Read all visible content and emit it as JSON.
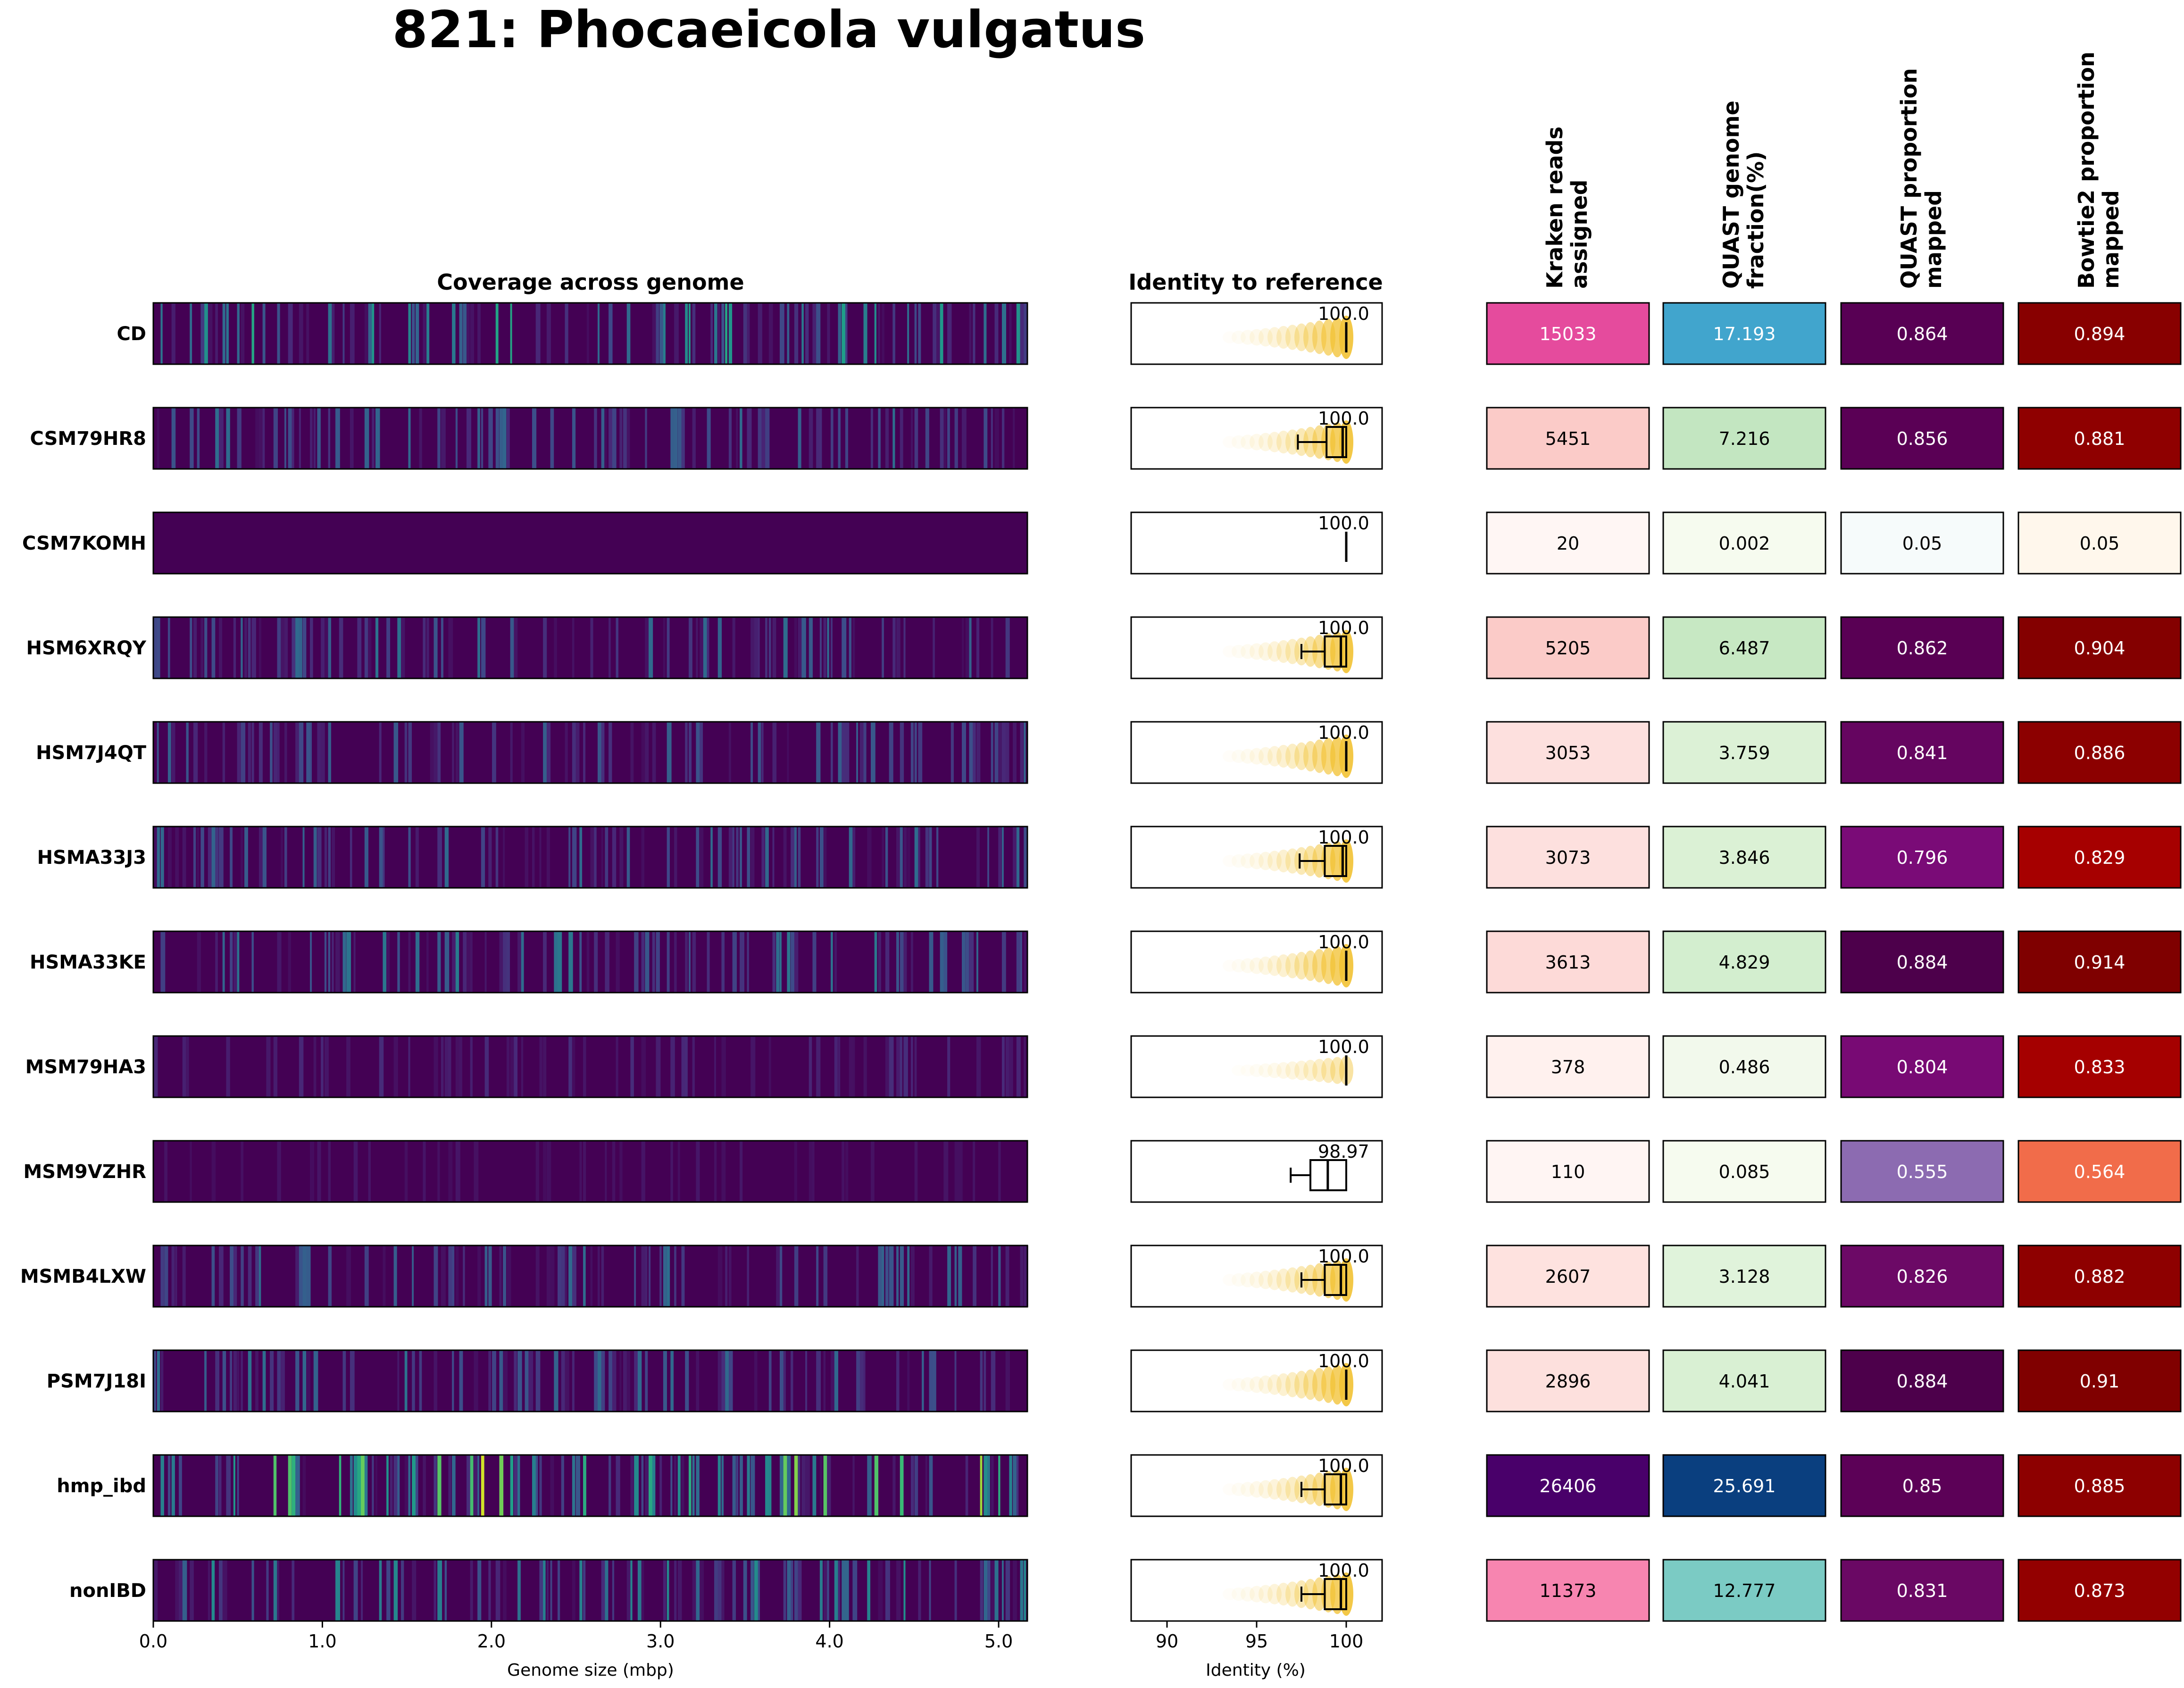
{
  "title": "821: Phocaeicola vulgatus",
  "panels": {
    "coverage_title": "Coverage across genome",
    "identity_title": "Identity to reference",
    "coverage_xlabel": "Genome size (mbp)",
    "identity_xlabel": "Identity (%)"
  },
  "column_headers": [
    [
      "Kraken reads",
      "assigned"
    ],
    [
      "QUAST genome",
      "fraction(%)"
    ],
    [
      "QUAST proportion",
      "mapped"
    ],
    [
      "Bowtie2 proportion",
      "mapped"
    ]
  ],
  "chart_data": {
    "type": "heatmap",
    "samples": [
      "CD",
      "CSM79HR8",
      "CSM7KOMH",
      "HSM6XRQY",
      "HSM7J4QT",
      "HSMA33J3",
      "HSMA33KE",
      "MSM79HA3",
      "MSM9VZHR",
      "MSMB4LXW",
      "PSM7J18I",
      "hmp_ibd",
      "nonIBD"
    ],
    "coverage": {
      "xlim": [
        0,
        5.17
      ],
      "xticks": [
        "0.0",
        "1.0",
        "2.0",
        "3.0",
        "4.0",
        "5.0"
      ],
      "colormap": "viridis",
      "relative_intensity": [
        0.55,
        0.35,
        0.0,
        0.35,
        0.3,
        0.32,
        0.38,
        0.12,
        0.06,
        0.33,
        0.35,
        0.85,
        0.45
      ]
    },
    "identity": {
      "xlim": [
        88,
        102
      ],
      "xticks": [
        "90",
        "95",
        "100"
      ],
      "max_labels": [
        "100.0",
        "100.0",
        "100.0",
        "100.0",
        "100.0",
        "100.0",
        "100.0",
        "100.0",
        "98.97",
        "100.0",
        "100.0",
        "100.0",
        "100.0"
      ],
      "boxplots": [
        {
          "q1": 99.9,
          "median": 100.0,
          "q3": 100.0,
          "whisker_low": 99.8,
          "whisker_high": 100.0
        },
        {
          "q1": 98.9,
          "median": 99.8,
          "q3": 100.0,
          "whisker_low": 97.3,
          "whisker_high": 100.0
        },
        {
          "q1": 100.0,
          "median": 100.0,
          "q3": 100.0,
          "whisker_low": 100.0,
          "whisker_high": 100.0
        },
        {
          "q1": 98.8,
          "median": 99.7,
          "q3": 100.0,
          "whisker_low": 97.5,
          "whisker_high": 100.0
        },
        {
          "q1": 99.9,
          "median": 100.0,
          "q3": 100.0,
          "whisker_low": 99.8,
          "whisker_high": 100.0
        },
        {
          "q1": 98.8,
          "median": 99.8,
          "q3": 100.0,
          "whisker_low": 97.4,
          "whisker_high": 100.0
        },
        {
          "q1": 99.9,
          "median": 100.0,
          "q3": 100.0,
          "whisker_low": 99.8,
          "whisker_high": 100.0
        },
        {
          "q1": 99.9,
          "median": 100.0,
          "q3": 100.0,
          "whisker_low": 99.8,
          "whisker_high": 100.0
        },
        {
          "q1": 98.0,
          "median": 98.97,
          "q3": 100.0,
          "whisker_low": 96.9,
          "whisker_high": 100.0
        },
        {
          "q1": 98.8,
          "median": 99.7,
          "q3": 100.0,
          "whisker_low": 97.5,
          "whisker_high": 100.0
        },
        {
          "q1": 99.9,
          "median": 100.0,
          "q3": 100.0,
          "whisker_low": 99.8,
          "whisker_high": 100.0
        },
        {
          "q1": 98.8,
          "median": 99.7,
          "q3": 100.0,
          "whisker_low": 97.5,
          "whisker_high": 100.0
        },
        {
          "q1": 98.8,
          "median": 99.7,
          "q3": 100.0,
          "whisker_low": 97.5,
          "whisker_high": 100.0
        }
      ]
    },
    "metrics": {
      "kraken_reads_assigned": {
        "values": [
          "15033",
          "5451",
          "20",
          "5205",
          "3053",
          "3073",
          "3613",
          "378",
          "110",
          "2607",
          "2896",
          "26406",
          "11373"
        ],
        "colors": [
          "#e54b9d",
          "#fbcbc8",
          "#fff6f4",
          "#fbcbc8",
          "#fde0de",
          "#fde0de",
          "#fddad8",
          "#fff1ee",
          "#fff5f3",
          "#fee2df",
          "#fde0dd",
          "#49006a",
          "#f785b0"
        ],
        "text_colors": [
          "#ffffff",
          "#000000",
          "#000000",
          "#000000",
          "#000000",
          "#000000",
          "#000000",
          "#000000",
          "#000000",
          "#000000",
          "#000000",
          "#ffffff",
          "#000000"
        ]
      },
      "quast_genome_fraction": {
        "values": [
          "17.193",
          "7.216",
          "0.002",
          "6.487",
          "3.759",
          "3.846",
          "4.829",
          "0.486",
          "0.085",
          "3.128",
          "4.041",
          "25.691",
          "12.777"
        ],
        "colors": [
          "#41a5cd",
          "#c3e6c1",
          "#f6fbef",
          "#c7e8c3",
          "#dcf1d6",
          "#dbf1d5",
          "#d3eecf",
          "#f2f9ec",
          "#f6fbef",
          "#e0f3db",
          "#d9f0d3",
          "#0a3f7f",
          "#7bcbc4"
        ],
        "text_colors": [
          "#ffffff",
          "#000000",
          "#000000",
          "#000000",
          "#000000",
          "#000000",
          "#000000",
          "#000000",
          "#000000",
          "#000000",
          "#000000",
          "#ffffff",
          "#000000"
        ]
      },
      "quast_proportion_mapped": {
        "values": [
          "0.864",
          "0.856",
          "0.05",
          "0.862",
          "0.841",
          "0.796",
          "0.884",
          "0.804",
          "0.555",
          "0.826",
          "0.884",
          "0.85",
          "0.831"
        ],
        "colors": [
          "#580054",
          "#5a0055",
          "#f6fbfb",
          "#590054",
          "#650560",
          "#7a0b77",
          "#4d004b",
          "#780a74",
          "#8c6bb1",
          "#6c0966",
          "#4d004b",
          "#5c0157",
          "#6a0864"
        ],
        "text_colors": [
          "#ffffff",
          "#ffffff",
          "#000000",
          "#ffffff",
          "#ffffff",
          "#ffffff",
          "#ffffff",
          "#ffffff",
          "#ffffff",
          "#ffffff",
          "#ffffff",
          "#ffffff",
          "#ffffff"
        ]
      },
      "bowtie2_proportion_mapped": {
        "values": [
          "0.894",
          "0.881",
          "0.05",
          "0.904",
          "0.886",
          "0.829",
          "0.914",
          "0.833",
          "0.564",
          "0.882",
          "0.91",
          "0.885",
          "0.873"
        ],
        "colors": [
          "#880000",
          "#8f0000",
          "#fff7ec",
          "#840000",
          "#8c0000",
          "#a60000",
          "#7f0000",
          "#a50000",
          "#f16c4a",
          "#8e0000",
          "#800000",
          "#8d0000",
          "#930000"
        ],
        "text_colors": [
          "#ffffff",
          "#ffffff",
          "#000000",
          "#ffffff",
          "#ffffff",
          "#ffffff",
          "#ffffff",
          "#ffffff",
          "#ffffff",
          "#ffffff",
          "#ffffff",
          "#ffffff",
          "#ffffff"
        ]
      }
    }
  }
}
